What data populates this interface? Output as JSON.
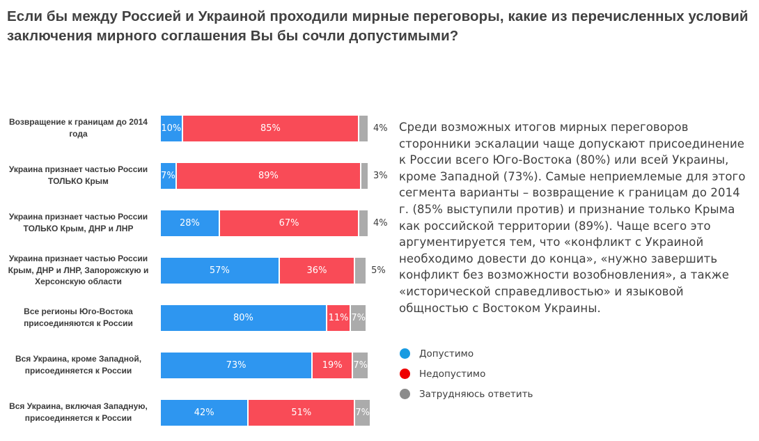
{
  "title": "Если бы между Россией и Украиной проходили мирные переговоры, какие из перечисленных условий заключения мирного соглашения Вы бы сочли допустимыми?",
  "chart_data": {
    "type": "bar",
    "stacked": true,
    "orientation": "horizontal",
    "unit": "%",
    "xlim": [
      0,
      100
    ],
    "grid": false,
    "legend_position": "right-bottom",
    "categories": [
      "Возвращение к границам до 2014 года",
      "Украина признает частью России ТОЛЬКО Крым",
      "Украина признает частью России ТОЛЬКО Крым, ДНР и ЛНР",
      "Украина признает частью России Крым, ДНР и ЛНР, Запорожскую и Херсонскую области",
      "Все регионы Юго-Востока присоединяются к России",
      "Вся Украина, кроме Западной, присоединяется к России",
      "Вся Украина, включая Западную, присоединяется к России"
    ],
    "series": [
      {
        "name": "Допустимо",
        "color": "#2E96F0",
        "values": [
          10,
          7,
          28,
          57,
          80,
          73,
          42
        ]
      },
      {
        "name": "Недопустимо",
        "color": "#F94B57",
        "values": [
          85,
          89,
          67,
          36,
          11,
          19,
          51
        ]
      },
      {
        "name": "Затрудняюсь ответить",
        "color": "#ABABAB",
        "values": [
          4,
          3,
          4,
          5,
          7,
          7,
          7
        ]
      }
    ],
    "value_label_format": "{v}%"
  },
  "annotation": "Среди возможных итогов мирных переговоров сторонники эскалации чаще допускают присоединение к России всего Юго-Востока (80%) или всей Украины, кроме Западной (73%). Самые неприемлемые для этого сегмента варианты – возвращение к границам до 2014 г. (85% выступили против) и признание только Крыма как российской территории (89%). Чаще всего это аргументируется тем, что «конфликт с Украиной необходимо довести до конца», «нужно завершить конфликт без возможности возобновления», а также «исторической справедливостью» и языковой общностью с Востоком Украины.",
  "legend": {
    "items": [
      {
        "label": "Допустимо",
        "color": "#189BE1"
      },
      {
        "label": "Недопустимо",
        "color": "#EE0000"
      },
      {
        "label": "Затрудняюсь ответить",
        "color": "#8B8B8B"
      }
    ]
  }
}
